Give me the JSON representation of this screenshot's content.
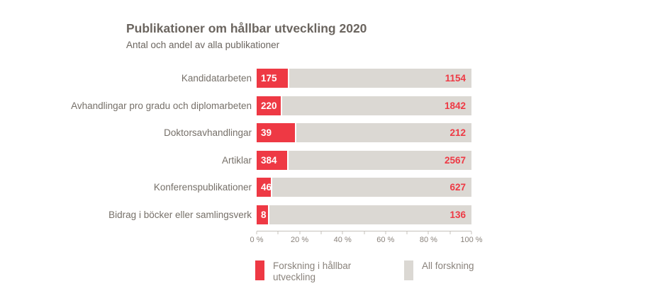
{
  "title": "Publikationer om hållbar utveckling 2020",
  "subtitle": "Antal och andel av alla publikationer",
  "chart_data": {
    "type": "bar",
    "orientation": "horizontal",
    "categories": [
      "Kandidatarbeten",
      "Avhandlingar pro gradu och diplomarbeten",
      "Doktorsavhandlingar",
      "Artiklar",
      "Konferenspublikationer",
      "Bidrag i böcker eller samlingsverk"
    ],
    "series": [
      {
        "name": "Forskning i hållbar utveckling",
        "color": "#ee3944",
        "values": [
          175,
          220,
          39,
          384,
          46,
          8
        ]
      },
      {
        "name": "All forskning",
        "color": "#dbd8d3",
        "values": [
          1154,
          1842,
          212,
          2567,
          627,
          136
        ]
      }
    ],
    "percent_share_of_all": [
      15.2,
      11.9,
      18.4,
      15.0,
      7.3,
      5.9
    ],
    "xlim": [
      0,
      100
    ],
    "x_axis": {
      "minor_tick_step": 10,
      "labels": [
        {
          "pos": 0,
          "text": "0 %"
        },
        {
          "pos": 20,
          "text": "20 %"
        },
        {
          "pos": 40,
          "text": "40 %"
        },
        {
          "pos": 60,
          "text": "60 %"
        },
        {
          "pos": 80,
          "text": "80 %"
        },
        {
          "pos": 100,
          "text": "100 %"
        }
      ]
    },
    "legend": [
      {
        "label": "Forskning i hållbar utveckling",
        "color": "#ee3944"
      },
      {
        "label": "All forskning",
        "color": "#dbd8d3"
      }
    ],
    "legend_position": "bottom",
    "grid": false
  },
  "colors": {
    "accent_red": "#ee3944",
    "bar_gray": "#dbd8d3",
    "title_text": "#6b655f",
    "label_text": "#767069",
    "axis_text": "#8a837c",
    "axis_line": "#c6c1bb",
    "background": "#ffffff"
  }
}
